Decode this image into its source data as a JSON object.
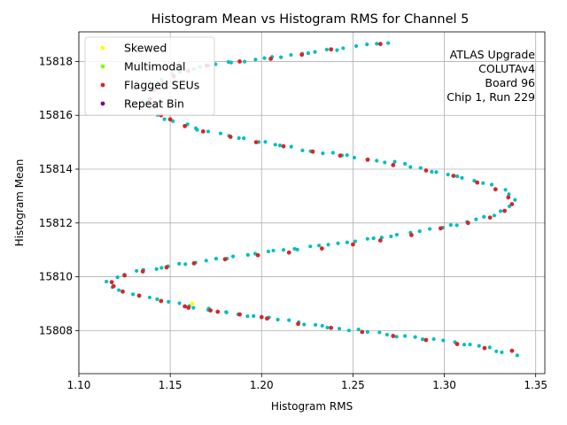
{
  "chart_data": {
    "type": "scatter",
    "title": "Histogram Mean vs Histogram RMS for Channel 5",
    "xlabel": "Histogram RMS",
    "ylabel": "Histogram Mean",
    "xlim": [
      1.1,
      1.355
    ],
    "ylim": [
      15806.4,
      15819.1
    ],
    "xticks": [
      1.1,
      1.15,
      1.2,
      1.25,
      1.3,
      1.35
    ],
    "xtick_labels": [
      "1.10",
      "1.15",
      "1.20",
      "1.25",
      "1.30",
      "1.35"
    ],
    "yticks": [
      15808,
      15810,
      15812,
      15814,
      15816,
      15818
    ],
    "ytick_labels": [
      "15808",
      "15810",
      "15812",
      "15814",
      "15816",
      "15818"
    ],
    "grid": true,
    "legend_position": "top-left",
    "annotation": [
      "ATLAS Upgrade",
      "COLUTAv4",
      "Board 96",
      "Chip 1, Run 229"
    ],
    "colors": {
      "all": "#00bfbf",
      "skewed": "#ffff00",
      "multimodal": "#80ff00",
      "flagged": "#d62728",
      "repeat": "#800080"
    },
    "series": [
      {
        "name": "All",
        "legend": false,
        "color_key": "all",
        "path": [
          [
            1.268,
            15818.7
          ],
          [
            1.255,
            15818.6
          ],
          [
            1.235,
            15818.4
          ],
          [
            1.215,
            15818.2
          ],
          [
            1.195,
            15818.05
          ],
          [
            1.175,
            15817.9
          ],
          [
            1.16,
            15817.7
          ],
          [
            1.15,
            15817.5
          ],
          [
            1.143,
            15817.2
          ],
          [
            1.139,
            15816.8
          ],
          [
            1.138,
            15816.4
          ],
          [
            1.141,
            15816.05
          ],
          [
            1.15,
            15815.8
          ],
          [
            1.165,
            15815.5
          ],
          [
            1.185,
            15815.2
          ],
          [
            1.205,
            15814.95
          ],
          [
            1.225,
            15814.7
          ],
          [
            1.25,
            15814.45
          ],
          [
            1.275,
            15814.2
          ],
          [
            1.295,
            15813.9
          ],
          [
            1.315,
            15813.6
          ],
          [
            1.33,
            15813.3
          ],
          [
            1.338,
            15813.0
          ],
          [
            1.338,
            15812.7
          ],
          [
            1.33,
            15812.4
          ],
          [
            1.318,
            15812.1
          ],
          [
            1.3,
            15811.85
          ],
          [
            1.278,
            15811.6
          ],
          [
            1.255,
            15811.35
          ],
          [
            1.228,
            15811.1
          ],
          [
            1.2,
            15810.9
          ],
          [
            1.172,
            15810.6
          ],
          [
            1.148,
            15810.4
          ],
          [
            1.128,
            15810.15
          ],
          [
            1.116,
            15809.85
          ],
          [
            1.12,
            15809.55
          ],
          [
            1.132,
            15809.3
          ],
          [
            1.15,
            15809.05
          ],
          [
            1.17,
            15808.8
          ],
          [
            1.195,
            15808.55
          ],
          [
            1.22,
            15808.3
          ],
          [
            1.248,
            15808.05
          ],
          [
            1.275,
            15807.8
          ],
          [
            1.3,
            15807.6
          ],
          [
            1.325,
            15807.35
          ],
          [
            1.342,
            15807.0
          ]
        ],
        "points": 160
      },
      {
        "name": "Skewed",
        "legend": true,
        "color_key": "skewed",
        "x": [
          1.162
        ],
        "y": [
          15809.0
        ]
      },
      {
        "name": "Multimodal",
        "legend": true,
        "color_key": "multimodal",
        "x": [],
        "y": []
      },
      {
        "name": "Flagged SEUs",
        "legend": true,
        "color_key": "flagged",
        "x": [
          1.265,
          1.238,
          1.222,
          1.205,
          1.188,
          1.17,
          1.16,
          1.152,
          1.146,
          1.141,
          1.139,
          1.141,
          1.145,
          1.15,
          1.158,
          1.168,
          1.183,
          1.197,
          1.212,
          1.228,
          1.243,
          1.258,
          1.272,
          1.29,
          1.305,
          1.318,
          1.328,
          1.335,
          1.337,
          1.333,
          1.325,
          1.313,
          1.298,
          1.282,
          1.265,
          1.25,
          1.233,
          1.215,
          1.198,
          1.18,
          1.163,
          1.148,
          1.135,
          1.125,
          1.118,
          1.119,
          1.124,
          1.133,
          1.145,
          1.158,
          1.172,
          1.188,
          1.203,
          1.22,
          1.238,
          1.255,
          1.272,
          1.29,
          1.307,
          1.322,
          1.337,
          1.16,
          1.176,
          1.2
        ],
        "y": [
          15818.65,
          15818.45,
          15818.25,
          15818.1,
          15818.0,
          15817.85,
          15817.65,
          15817.45,
          15817.2,
          15816.95,
          15816.6,
          15816.3,
          15816.0,
          15815.85,
          15815.6,
          15815.4,
          15815.2,
          15815.0,
          15814.85,
          15814.65,
          15814.5,
          15814.35,
          15814.15,
          15813.95,
          15813.75,
          15813.5,
          15813.25,
          15812.95,
          15812.7,
          15812.45,
          15812.2,
          15812.0,
          15811.8,
          15811.55,
          15811.35,
          15811.2,
          15811.05,
          15810.9,
          15810.8,
          15810.65,
          15810.5,
          15810.35,
          15810.2,
          15810.05,
          15809.8,
          15809.65,
          15809.45,
          15809.3,
          15809.1,
          15808.9,
          15808.75,
          15808.6,
          15808.45,
          15808.25,
          15808.1,
          15807.95,
          15807.8,
          15807.65,
          15807.5,
          15807.35,
          15807.25,
          15808.85,
          15808.7,
          15808.5
        ]
      },
      {
        "name": "Repeat Bin",
        "legend": true,
        "color_key": "repeat",
        "x": [],
        "y": []
      }
    ]
  }
}
